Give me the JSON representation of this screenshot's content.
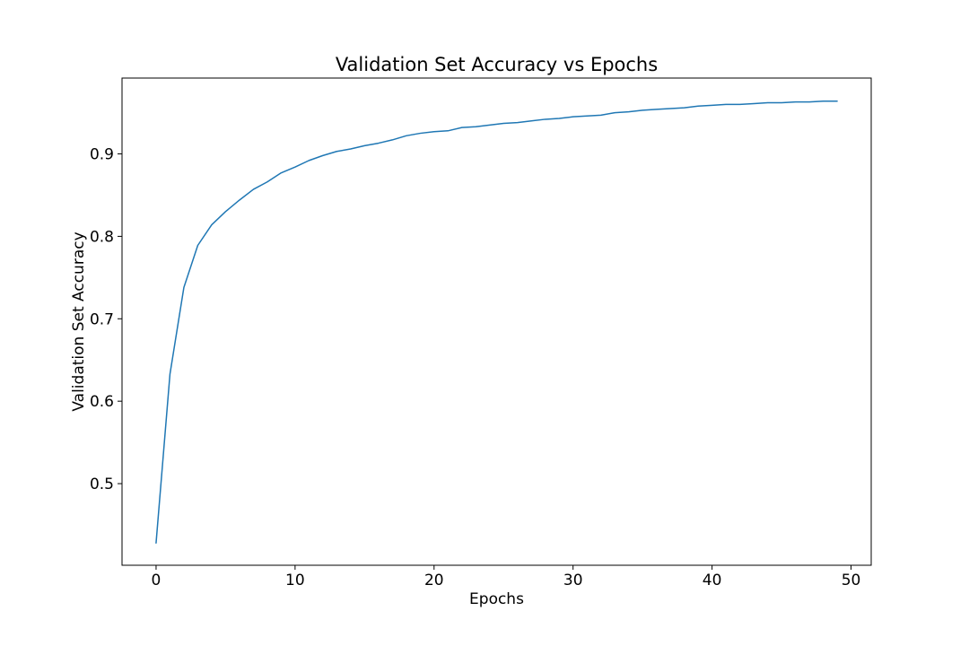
{
  "chart_data": {
    "type": "line",
    "title": "Validation Set Accuracy vs Epochs",
    "xlabel": "Epochs",
    "ylabel": "Validation Set Accuracy",
    "xlim": [
      -2.45,
      51.45
    ],
    "ylim": [
      0.401,
      0.992
    ],
    "xticks": [
      0,
      10,
      20,
      30,
      40,
      50
    ],
    "yticks": [
      0.5,
      0.6,
      0.7,
      0.8,
      0.9
    ],
    "grid": false,
    "legend": "none",
    "series": [
      {
        "color": "#1f77b4",
        "x": [
          0,
          1,
          2,
          3,
          4,
          5,
          6,
          7,
          8,
          9,
          10,
          11,
          12,
          13,
          14,
          15,
          16,
          17,
          18,
          19,
          20,
          21,
          22,
          23,
          24,
          25,
          26,
          27,
          28,
          29,
          30,
          31,
          32,
          33,
          34,
          35,
          36,
          37,
          38,
          39,
          40,
          41,
          42,
          43,
          44,
          45,
          46,
          47,
          48,
          49
        ],
        "y": [
          0.428,
          0.633,
          0.738,
          0.789,
          0.814,
          0.83,
          0.844,
          0.857,
          0.866,
          0.877,
          0.884,
          0.892,
          0.898,
          0.903,
          0.906,
          0.91,
          0.913,
          0.917,
          0.922,
          0.925,
          0.927,
          0.928,
          0.932,
          0.933,
          0.935,
          0.937,
          0.938,
          0.94,
          0.942,
          0.943,
          0.945,
          0.946,
          0.947,
          0.95,
          0.951,
          0.953,
          0.954,
          0.955,
          0.956,
          0.958,
          0.959,
          0.96,
          0.96,
          0.961,
          0.962,
          0.962,
          0.963,
          0.963,
          0.964,
          0.964
        ]
      }
    ]
  }
}
